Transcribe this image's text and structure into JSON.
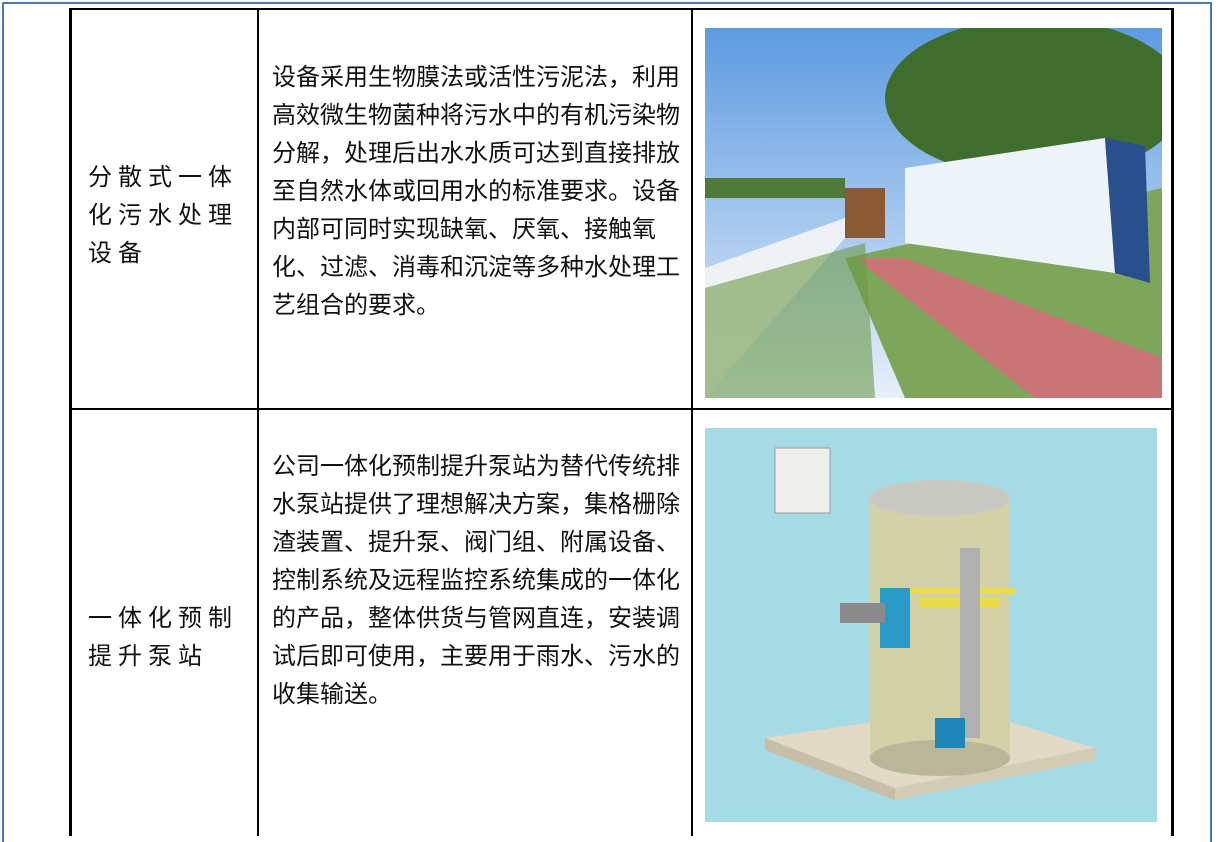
{
  "table": {
    "rows": [
      {
        "name": "分散式一体化污水处理设备",
        "description": "设备采用生物膜法或活性污泥法，利用高效微生物菌种将污水中的有机污染物分解，处理后出水水质可达到直接排放至自然水体或回用水的标准要求。设备内部可同时实现缺氧、厌氧、接触氧化、过滤、消毒和沉淀等多种水处理工艺组合的要求。"
      },
      {
        "name": "一体化预制提升泵站",
        "description": "公司一体化预制提升泵站为替代传统排水泵站提供了理想解决方案，集格栅除渣装置、提升泵、阀门组、附属设备、控制系统及远程监控系统集成的一体化的产品，整体供货与管网直连，安装调试后即可使用，主要用于雨水、污水的收集输送。"
      }
    ]
  }
}
